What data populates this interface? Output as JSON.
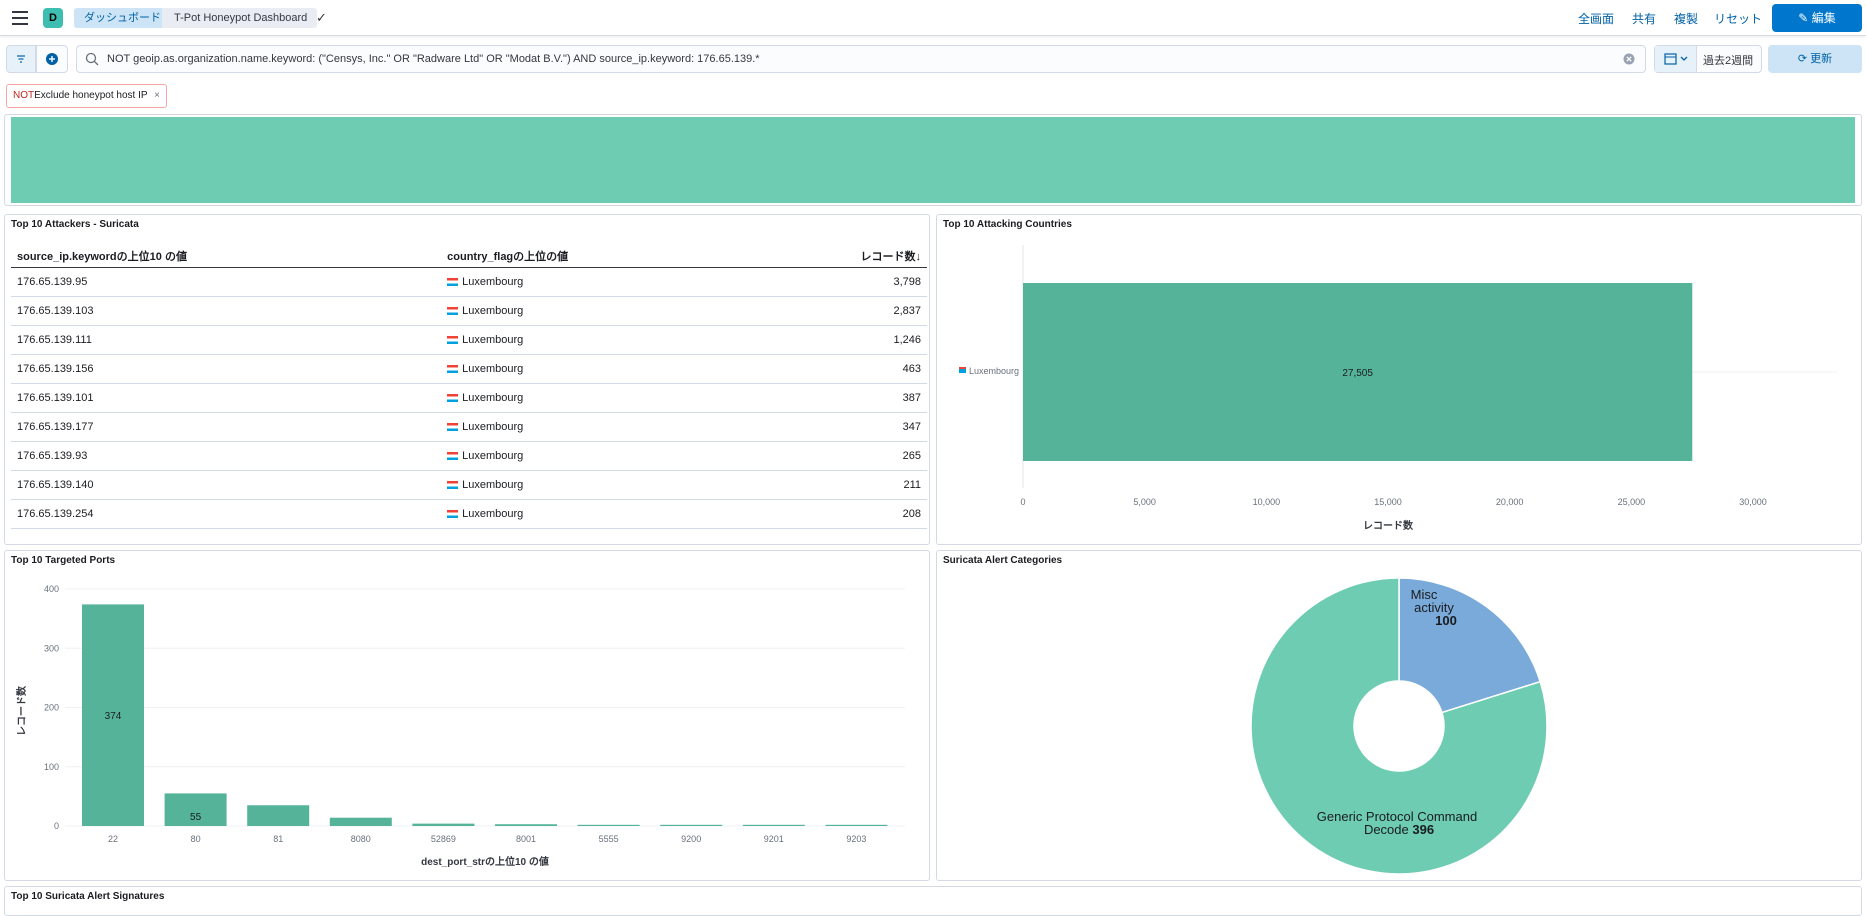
{
  "header": {
    "space_initial": "D",
    "breadcrumbs": [
      "ダッシュボード",
      "T-Pot Honeypot Dashboard"
    ],
    "links": [
      "全画面",
      "共有",
      "複製",
      "リセット"
    ],
    "edit_label": "編集"
  },
  "query": {
    "text": "NOT geoip.as.organization.name.keyword: (\"Censys, Inc.\" OR \"Radware Ltd\" OR \"Modat B.V.\") AND source_ip.keyword: 176.65.139.*",
    "date_label": "過去2週間",
    "refresh_label": "更新"
  },
  "filter_pill": {
    "not": "NOT",
    "label": "Exclude honeypot host IP",
    "close": "×"
  },
  "top_attackers": {
    "title": "Top 10 Attackers - Suricata",
    "columns": [
      "source_ip.keywordの上位10 の値",
      "country_flagの上位の値",
      "レコード数↓"
    ],
    "rows": [
      {
        "ip": "176.65.139.95",
        "country": "Luxembourg",
        "count": "3,798"
      },
      {
        "ip": "176.65.139.103",
        "country": "Luxembourg",
        "count": "2,837"
      },
      {
        "ip": "176.65.139.111",
        "country": "Luxembourg",
        "count": "1,246"
      },
      {
        "ip": "176.65.139.156",
        "country": "Luxembourg",
        "count": "463"
      },
      {
        "ip": "176.65.139.101",
        "country": "Luxembourg",
        "count": "387"
      },
      {
        "ip": "176.65.139.177",
        "country": "Luxembourg",
        "count": "347"
      },
      {
        "ip": "176.65.139.93",
        "country": "Luxembourg",
        "count": "265"
      },
      {
        "ip": "176.65.139.140",
        "country": "Luxembourg",
        "count": "211"
      },
      {
        "ip": "176.65.139.254",
        "country": "Luxembourg",
        "count": "208"
      }
    ]
  },
  "top_countries": {
    "title": "Top 10 Attacking Countries"
  },
  "top_ports": {
    "title": "Top 10 Targeted Ports"
  },
  "alert_categories": {
    "title": "Suricata Alert Categories"
  },
  "signatures": {
    "title": "Top 10 Suricata Alert Signatures"
  },
  "colors": {
    "accent": "#0077cc",
    "teal": "#6dccb1",
    "teal_dark": "#54b399",
    "blue": "#79aad9"
  },
  "chart_data": [
    {
      "type": "bar",
      "orientation": "horizontal",
      "categories": [
        "Luxembourg"
      ],
      "values": [
        27505
      ],
      "value_labels": [
        "27,505"
      ],
      "xlabel": "レコード数",
      "xlim": [
        0,
        30000
      ],
      "ticks": [
        "0",
        "5,000",
        "10,000",
        "15,000",
        "20,000",
        "25,000",
        "30,000"
      ]
    },
    {
      "type": "bar",
      "categories": [
        "22",
        "80",
        "81",
        "8080",
        "52869",
        "8001",
        "5555",
        "9200",
        "9201",
        "9203"
      ],
      "values": [
        374,
        55,
        35,
        14,
        4,
        3,
        2,
        2,
        2,
        2
      ],
      "value_labels": [
        "374",
        "55",
        "",
        "",
        "",
        "",
        "",
        "",
        "",
        ""
      ],
      "xlabel": "dest_port_strの上位10 の値",
      "ylabel": "レコード数",
      "ylim": [
        0,
        400
      ],
      "ticks": [
        "0",
        "100",
        "200",
        "300",
        "400"
      ]
    },
    {
      "type": "pie",
      "donut": true,
      "slices": [
        {
          "label": "Misc activity",
          "value": 100,
          "value_label": "100"
        },
        {
          "label": "Generic Protocol Command Decode",
          "value": 396,
          "value_label": "396"
        }
      ]
    }
  ]
}
